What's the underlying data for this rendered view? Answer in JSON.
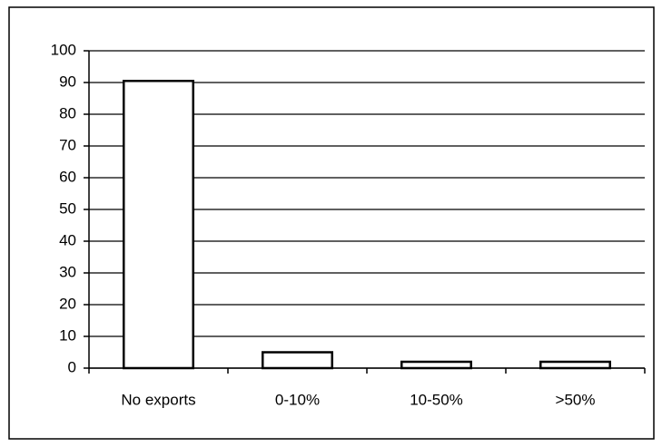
{
  "chart_data": {
    "type": "bar",
    "categories": [
      "No exports",
      "0-10%",
      "10-50%",
      ">50%"
    ],
    "values": [
      90.5,
      5,
      2,
      2
    ],
    "color": "#ffffff",
    "ylim": [
      0,
      100
    ],
    "yticks": [
      0,
      10,
      20,
      30,
      40,
      50,
      60,
      70,
      80,
      90,
      100
    ],
    "grid": true
  }
}
